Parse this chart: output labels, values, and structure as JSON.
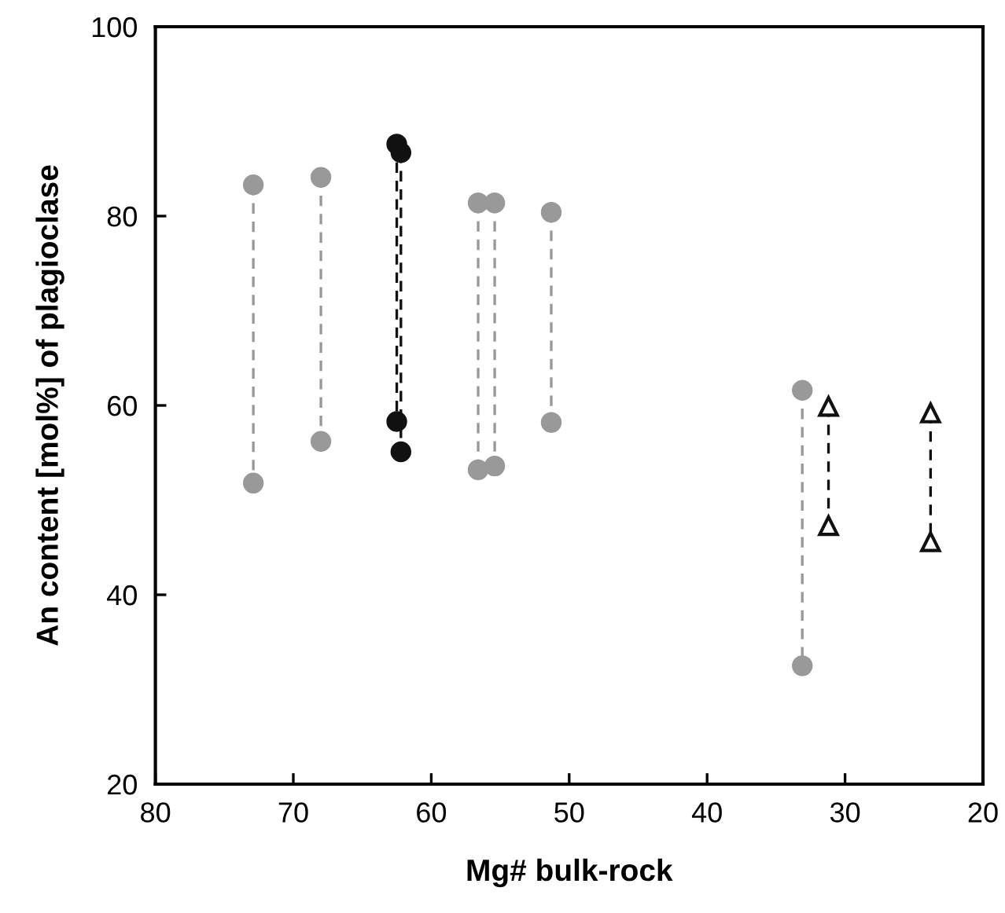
{
  "chart_data": {
    "type": "line",
    "xlabel": "Mg# bulk-rock",
    "ylabel": "An content [mol%] of plagioclase",
    "xlim": [
      80,
      20
    ],
    "xticks": [
      80,
      70,
      60,
      50,
      40,
      30,
      20
    ],
    "ylim": [
      20,
      100
    ],
    "yticks": [
      20,
      40,
      60,
      80,
      100
    ],
    "grid": false,
    "legend": false,
    "line_style": "dashed",
    "series": [
      {
        "color": "#999999",
        "marker": "circle",
        "x": [
          72.9,
          72.9
        ],
        "values": [
          83.3,
          51.8
        ]
      },
      {
        "color": "#999999",
        "marker": "circle",
        "x": [
          68.0,
          68.0
        ],
        "values": [
          84.1,
          56.2
        ]
      },
      {
        "color": "#111111",
        "marker": "circle",
        "x": [
          62.5,
          62.5
        ],
        "values": [
          87.6,
          58.3
        ]
      },
      {
        "color": "#111111",
        "marker": "circle",
        "x": [
          62.2,
          62.2
        ],
        "values": [
          86.7,
          55.1
        ]
      },
      {
        "color": "#999999",
        "marker": "circle",
        "x": [
          56.6,
          56.6
        ],
        "values": [
          81.4,
          53.2
        ]
      },
      {
        "color": "#999999",
        "marker": "circle",
        "x": [
          55.4,
          55.4
        ],
        "values": [
          81.4,
          53.6
        ]
      },
      {
        "color": "#999999",
        "marker": "circle",
        "x": [
          51.3,
          51.3
        ],
        "values": [
          80.4,
          58.2
        ]
      },
      {
        "color": "#999999",
        "marker": "circle",
        "x": [
          33.1,
          33.1
        ],
        "values": [
          61.6,
          32.5
        ]
      },
      {
        "color": "#111111",
        "marker": "triangle",
        "x": [
          31.2,
          31.2
        ],
        "values": [
          59.9,
          47.3
        ]
      },
      {
        "color": "#111111",
        "marker": "triangle",
        "x": [
          23.8,
          23.8
        ],
        "values": [
          59.2,
          45.6
        ]
      }
    ]
  }
}
